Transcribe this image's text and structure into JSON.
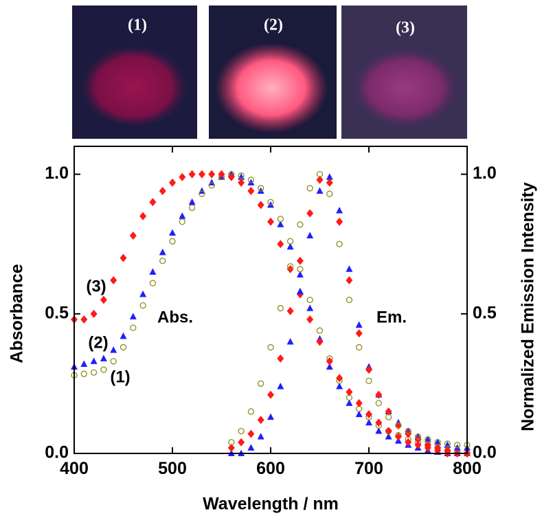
{
  "photos": {
    "labels": [
      "(1)",
      "(2)",
      "(3)"
    ]
  },
  "chart_data": {
    "type": "scatter",
    "xlabel": "Wavelength / nm",
    "ylabel": "Absorbance",
    "y2label": "Normalized Emission Intensity",
    "xlim": [
      400,
      800
    ],
    "ylim": [
      0,
      1.1
    ],
    "y2lim": [
      0,
      1.1
    ],
    "xticks": [
      400,
      500,
      600,
      700,
      800
    ],
    "yticks": [
      {
        "value": 0,
        "label": "0.0"
      },
      {
        "value": 0.5,
        "label": "0.5"
      },
      {
        "value": 1,
        "label": "1.0"
      }
    ],
    "y2ticks": [
      {
        "value": 0,
        "label": "0.0"
      },
      {
        "value": 0.5,
        "label": "0.5"
      },
      {
        "value": 1,
        "label": "1.0"
      }
    ],
    "annotations": [
      "(1)",
      "(2)",
      "(3)",
      "Abs.",
      "Em."
    ],
    "series": [
      {
        "color": "#1f1fff",
        "marker": "triangle",
        "x": [
          400,
          410,
          420,
          430,
          440,
          450,
          460,
          470,
          480,
          490,
          500,
          510,
          520,
          530,
          540,
          550,
          560,
          570,
          580,
          590,
          600,
          610,
          620,
          630,
          640,
          650,
          660,
          670,
          680,
          690,
          700,
          710,
          720,
          730,
          740,
          750,
          760,
          770,
          780,
          790,
          800
        ],
        "values": [
          0.31,
          0.32,
          0.33,
          0.34,
          0.37,
          0.42,
          0.49,
          0.57,
          0.65,
          0.72,
          0.79,
          0.85,
          0.9,
          0.94,
          0.97,
          0.99,
          1.0,
          0.99,
          0.97,
          0.94,
          0.89,
          0.82,
          0.74,
          0.64,
          0.52,
          0.41,
          0.31,
          0.24,
          0.18,
          0.14,
          0.11,
          0.08,
          0.06,
          0.045,
          0.03,
          0.02,
          0.01,
          0.005,
          0,
          0,
          0
        ]
      },
      {
        "color": "#8c8c1e",
        "marker": "circle-open",
        "x": [
          400,
          410,
          420,
          430,
          440,
          450,
          460,
          470,
          480,
          490,
          500,
          510,
          520,
          530,
          540,
          550,
          560,
          570,
          580,
          590,
          600,
          610,
          620,
          630,
          640,
          650,
          660,
          670,
          680,
          690,
          700,
          710,
          720,
          730,
          740,
          750,
          760,
          770,
          780,
          790,
          800
        ],
        "values": [
          0.28,
          0.285,
          0.29,
          0.3,
          0.33,
          0.38,
          0.45,
          0.53,
          0.61,
          0.69,
          0.76,
          0.83,
          0.88,
          0.93,
          0.96,
          0.99,
          1.0,
          0.995,
          0.98,
          0.95,
          0.9,
          0.84,
          0.76,
          0.66,
          0.55,
          0.44,
          0.34,
          0.26,
          0.2,
          0.16,
          0.13,
          0.1,
          0.08,
          0.065,
          0.05,
          0.04,
          0.03,
          0.02,
          0.01,
          0.005,
          0
        ]
      },
      {
        "color": "#ff1a1a",
        "marker": "diamond",
        "x": [
          400,
          410,
          420,
          430,
          440,
          450,
          460,
          470,
          480,
          490,
          500,
          510,
          520,
          530,
          540,
          550,
          560,
          570,
          580,
          590,
          600,
          610,
          620,
          630,
          640,
          650,
          660,
          670,
          680,
          690,
          700,
          710,
          720,
          730,
          740,
          750,
          760,
          770,
          780,
          790,
          800
        ],
        "values": [
          0.48,
          0.48,
          0.5,
          0.55,
          0.62,
          0.7,
          0.78,
          0.85,
          0.9,
          0.94,
          0.97,
          0.99,
          1.0,
          1.0,
          1.0,
          1.0,
          0.99,
          0.97,
          0.94,
          0.89,
          0.83,
          0.75,
          0.66,
          0.57,
          0.48,
          0.4,
          0.33,
          0.27,
          0.22,
          0.18,
          0.14,
          0.11,
          0.08,
          0.06,
          0.04,
          0.03,
          0.02,
          0.01,
          0,
          0,
          0
        ]
      },
      {
        "color": "#1f1fff",
        "marker": "triangle",
        "axis": "y2",
        "x": [
          560,
          570,
          580,
          590,
          600,
          610,
          620,
          630,
          640,
          650,
          660,
          670,
          680,
          690,
          700,
          710,
          720,
          730,
          740,
          750,
          760,
          770,
          780,
          790,
          800
        ],
        "values": [
          0,
          0,
          0.02,
          0.06,
          0.13,
          0.24,
          0.4,
          0.58,
          0.78,
          0.94,
          0.99,
          0.87,
          0.66,
          0.46,
          0.31,
          0.21,
          0.15,
          0.11,
          0.08,
          0.06,
          0.05,
          0.04,
          0.03,
          0.02,
          0.02
        ]
      },
      {
        "color": "#ff1a1a",
        "marker": "diamond",
        "axis": "y2",
        "x": [
          560,
          570,
          580,
          590,
          600,
          610,
          620,
          630,
          640,
          650,
          660,
          670,
          680,
          690,
          700,
          710,
          720,
          730,
          740,
          750,
          760,
          770,
          780,
          790,
          800
        ],
        "values": [
          0.02,
          0.04,
          0.07,
          0.12,
          0.21,
          0.34,
          0.51,
          0.69,
          0.86,
          0.98,
          0.97,
          0.83,
          0.62,
          0.43,
          0.3,
          0.21,
          0.15,
          0.1,
          0.07,
          0.05,
          0.03,
          0.02,
          0.01,
          0,
          0
        ]
      },
      {
        "color": "#8c8c1e",
        "marker": "circle-open",
        "axis": "y2",
        "x": [
          560,
          570,
          580,
          590,
          600,
          610,
          620,
          630,
          640,
          650,
          660,
          670,
          680,
          690,
          700,
          710,
          720,
          730,
          740,
          750,
          760,
          770,
          780,
          790,
          800
        ],
        "values": [
          0.04,
          0.08,
          0.15,
          0.25,
          0.38,
          0.52,
          0.67,
          0.82,
          0.95,
          1.0,
          0.93,
          0.75,
          0.55,
          0.38,
          0.26,
          0.18,
          0.13,
          0.1,
          0.08,
          0.06,
          0.05,
          0.04,
          0.035,
          0.03,
          0.03
        ]
      }
    ]
  }
}
